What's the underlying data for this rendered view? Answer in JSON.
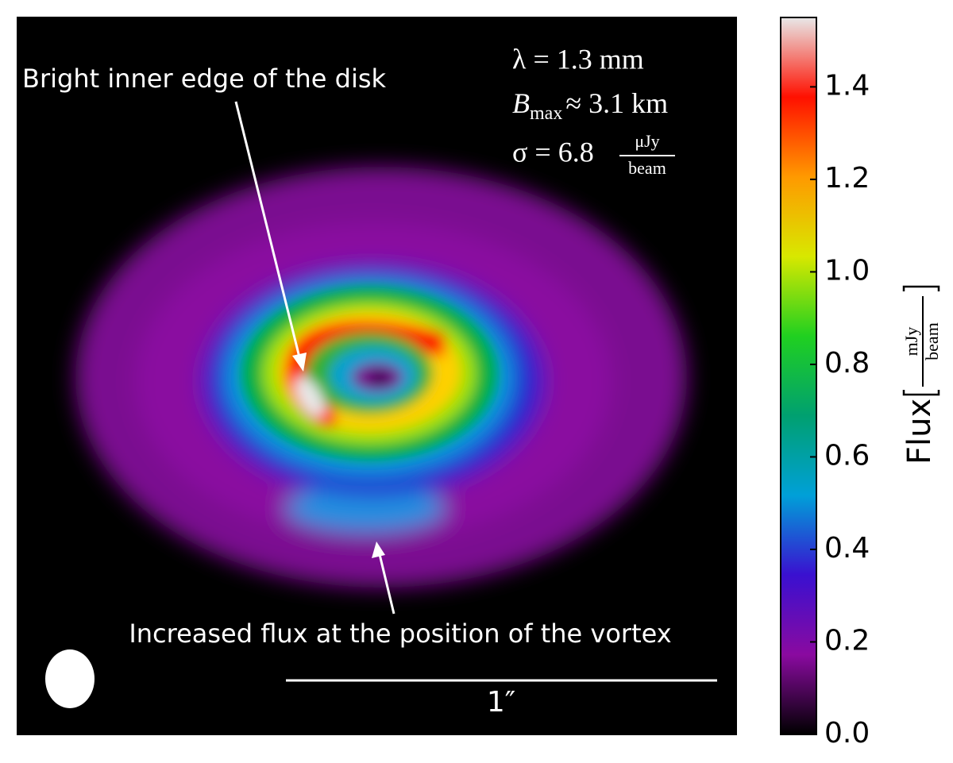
{
  "chart_data": {
    "type": "image",
    "annotations": {
      "inner_edge": "Bright inner edge of the disk",
      "vortex": "Increased flux at the position of the vortex",
      "scale_bar": "1″"
    },
    "parameters": {
      "wavelength": "λ = 1.3 mm",
      "baseline_symbol": "B",
      "baseline_subscript": "max",
      "baseline_value": "≈ 3.1 km",
      "noise": "σ = 6.8",
      "noise_numerator": "μJy",
      "noise_denominator": "beam"
    },
    "colorbar": {
      "label": "Flux",
      "unit_numerator": "mJy",
      "unit_denominator": "beam",
      "ylim": [
        0,
        1.55
      ],
      "yticks": [
        {
          "value": 0,
          "label": "0.0"
        },
        0.2,
        0.4,
        0.6,
        0.8,
        {
          "value": 1,
          "label": "1.0"
        },
        1.2,
        1.4
      ],
      "colormap": [
        "#000000",
        "#8a0aa0",
        "#3a10d0",
        "#00a0d8",
        "#00a070",
        "#20d020",
        "#d8e800",
        "#ff9900",
        "#ff1000",
        "#e8e8e8"
      ]
    }
  }
}
